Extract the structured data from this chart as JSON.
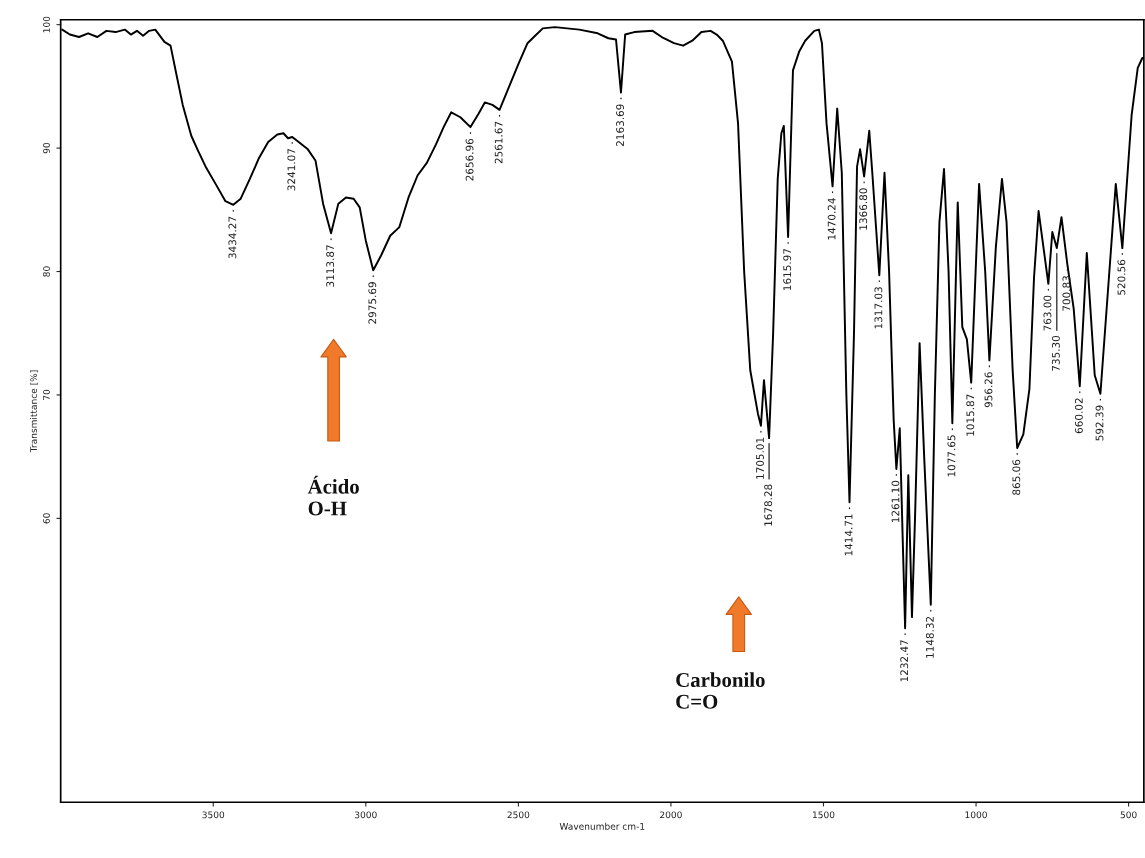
{
  "chart_data": {
    "type": "line",
    "xlabel": "Wavenumber cm-1",
    "ylabel": "Transmittance [%]",
    "xlim": [
      4000,
      450
    ],
    "xticks": [
      3500,
      3000,
      2500,
      2000,
      1500,
      1000,
      500
    ],
    "ylim": [
      37,
      100.4
    ],
    "yticks": [
      60,
      70,
      80,
      90,
      100
    ],
    "series": [
      {
        "color": "#000000",
        "x": [
          3995,
          3970,
          3940,
          3910,
          3880,
          3850,
          3820,
          3790,
          3770,
          3750,
          3730,
          3710,
          3690,
          3660,
          3640,
          3621,
          3600,
          3572,
          3550,
          3523,
          3490,
          3460,
          3434.27,
          3410,
          3380,
          3350,
          3320,
          3290,
          3270,
          3255,
          3241.07,
          3220,
          3190,
          3165,
          3140,
          3113.87,
          3090,
          3065,
          3040,
          3020,
          3000,
          2975.69,
          2950,
          2920,
          2890,
          2860,
          2830,
          2800,
          2770,
          2745,
          2720,
          2690,
          2656.96,
          2630,
          2610,
          2585,
          2561.67,
          2530,
          2500,
          2470,
          2445,
          2420,
          2380,
          2300,
          2240,
          2205,
          2180,
          2163.69,
          2150,
          2120,
          2060,
          2030,
          1990,
          1960,
          1930,
          1900,
          1870,
          1850,
          1830,
          1800,
          1780,
          1760,
          1740,
          1715,
          1705.01,
          1695,
          1678.28,
          1665,
          1650,
          1638,
          1630,
          1615.97,
          1600,
          1580,
          1560,
          1530,
          1515,
          1505,
          1490,
          1470.24,
          1455,
          1440,
          1425,
          1414.71,
          1400,
          1390,
          1380,
          1366.8,
          1350,
          1340,
          1317.03,
          1300,
          1285,
          1270,
          1261.1,
          1250,
          1240,
          1232.47,
          1222,
          1210,
          1200,
          1185,
          1170,
          1148.32,
          1135,
          1120,
          1105,
          1090,
          1077.65,
          1060,
          1045,
          1030,
          1015.87,
          990,
          970,
          956.26,
          935,
          915,
          900,
          880,
          865.06,
          845,
          825,
          810,
          795,
          763.0,
          750,
          735.3,
          720,
          700.83,
          680,
          660.02,
          637,
          611,
          592.39,
          542,
          520.56,
          490,
          470,
          455
        ],
        "values": [
          99.6,
          99.2,
          99.0,
          99.3,
          99.0,
          99.5,
          99.4,
          99.6,
          99.2,
          99.5,
          99.1,
          99.5,
          99.6,
          98.6,
          98.3,
          96.0,
          93.5,
          91.0,
          89.8,
          88.4,
          87.0,
          85.7,
          85.4,
          85.9,
          87.5,
          89.2,
          90.5,
          91.1,
          91.2,
          90.8,
          90.9,
          90.5,
          89.9,
          89.0,
          85.5,
          83.1,
          85.5,
          86.0,
          85.9,
          85.2,
          82.5,
          80.1,
          81.3,
          82.9,
          83.6,
          86.0,
          87.8,
          88.8,
          90.3,
          91.7,
          92.9,
          92.5,
          91.7,
          92.8,
          93.7,
          93.5,
          93.1,
          95.0,
          96.8,
          98.5,
          99.1,
          99.7,
          99.8,
          99.6,
          99.3,
          98.9,
          98.8,
          94.5,
          99.2,
          99.4,
          99.5,
          99.0,
          98.5,
          98.3,
          98.7,
          99.4,
          99.5,
          99.2,
          98.7,
          97.0,
          92.0,
          80.0,
          72.0,
          68.5,
          67.5,
          71.2,
          66.5,
          75.0,
          87.5,
          91.2,
          91.8,
          82.8,
          96.3,
          97.8,
          98.7,
          99.5,
          99.6,
          98.5,
          92.0,
          86.9,
          93.2,
          88.0,
          70.0,
          61.3,
          75.0,
          88.5,
          89.9,
          87.7,
          91.4,
          88.0,
          79.7,
          88.0,
          80.0,
          68.0,
          64.0,
          67.3,
          58.0,
          51.1,
          63.5,
          52.0,
          60.0,
          74.2,
          65.0,
          53.0,
          70.0,
          84.0,
          88.3,
          80.0,
          67.7,
          85.6,
          75.5,
          74.5,
          71.0,
          87.1,
          80.0,
          72.8,
          82.0,
          87.5,
          84.0,
          72.0,
          65.7,
          66.8,
          70.5,
          79.5,
          84.9,
          79.0,
          83.2,
          81.9,
          84.4,
          80.6,
          77.0,
          70.7,
          81.5,
          71.6,
          70.1,
          87.1,
          81.9,
          92.7,
          96.5,
          97.3
        ]
      }
    ],
    "annotations": [
      {
        "text": "3434.27",
        "x": 3434.27,
        "y": 85.4
      },
      {
        "text": "3241.07",
        "x": 3241.07,
        "y": 90.9
      },
      {
        "text": "3113.87",
        "x": 3113.87,
        "y": 83.1
      },
      {
        "text": "2975.69",
        "x": 2975.69,
        "y": 80.1
      },
      {
        "text": "2656.96",
        "x": 2656.96,
        "y": 91.7
      },
      {
        "text": "2561.67",
        "x": 2561.67,
        "y": 93.1
      },
      {
        "text": "2163.69",
        "x": 2163.69,
        "y": 94.5
      },
      {
        "text": "1705.01",
        "x": 1705.01,
        "y": 67.5
      },
      {
        "text": "1678.28",
        "x": 1678.28,
        "y": 66.5
      },
      {
        "text": "1615.97",
        "x": 1615.97,
        "y": 82.8
      },
      {
        "text": "1470.24",
        "x": 1470.24,
        "y": 86.9
      },
      {
        "text": "1414.71",
        "x": 1414.71,
        "y": 61.3
      },
      {
        "text": "1366.80",
        "x": 1366.8,
        "y": 87.7
      },
      {
        "text": "1317.03",
        "x": 1317.03,
        "y": 79.7
      },
      {
        "text": "1261.10",
        "x": 1261.1,
        "y": 64.0
      },
      {
        "text": "1232.47",
        "x": 1232.47,
        "y": 51.1
      },
      {
        "text": "1148.32",
        "x": 1148.32,
        "y": 53.0
      },
      {
        "text": "1077.65",
        "x": 1077.65,
        "y": 67.7
      },
      {
        "text": "1015.87",
        "x": 1015.87,
        "y": 71.0
      },
      {
        "text": "956.26",
        "x": 956.26,
        "y": 72.8
      },
      {
        "text": "865.06",
        "x": 865.06,
        "y": 65.7
      },
      {
        "text": "763.00",
        "x": 763.0,
        "y": 79.0
      },
      {
        "text": "735.30",
        "x": 735.3,
        "y": 81.9
      },
      {
        "text": "700.83",
        "x": 700.83,
        "y": 80.6
      },
      {
        "text": "660.02",
        "x": 660.02,
        "y": 70.7
      },
      {
        "text": "592.39",
        "x": 592.39,
        "y": 70.1
      },
      {
        "text": "520.56",
        "x": 520.56,
        "y": 81.9
      },
      "Ácido\nO-H",
      "Carbonilo\nC=O"
    ]
  }
}
